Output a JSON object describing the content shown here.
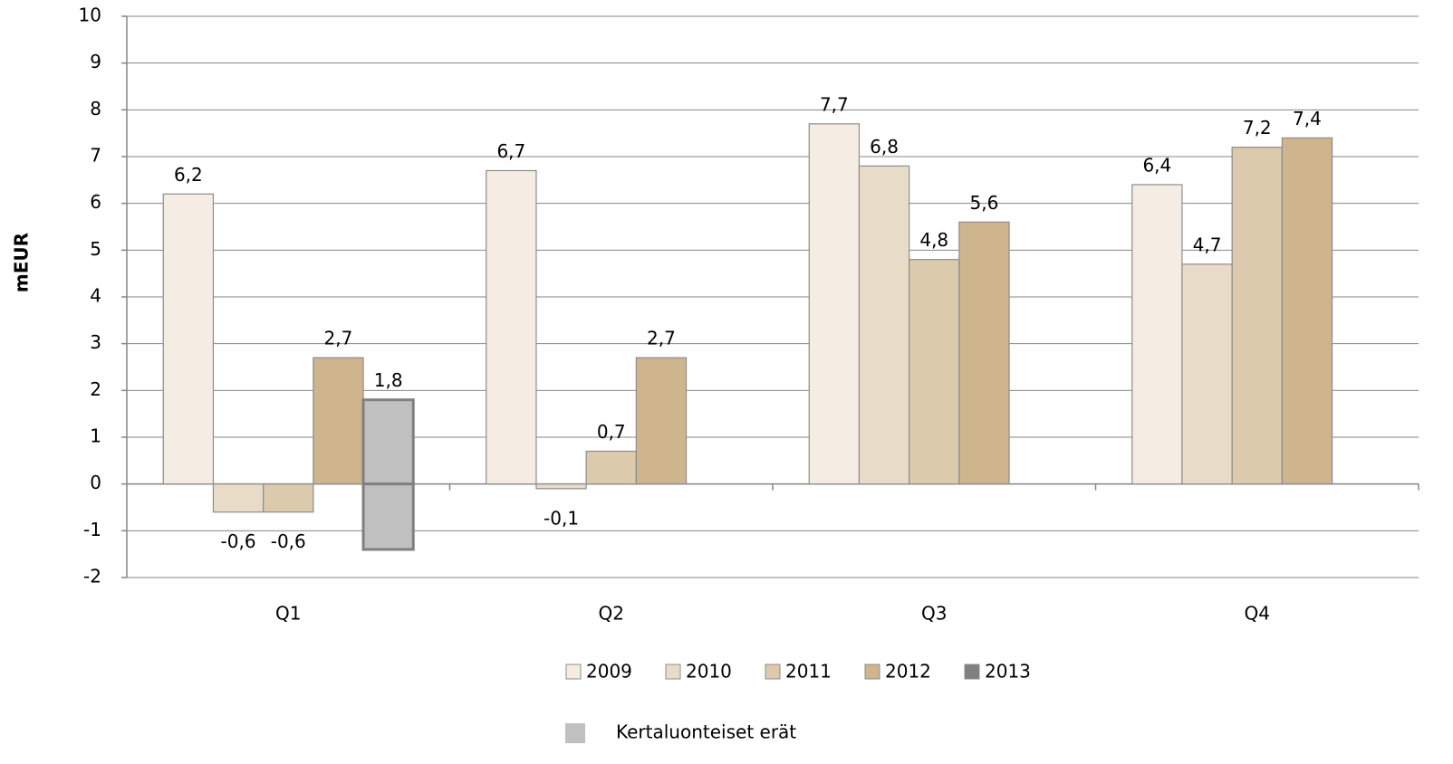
{
  "chart_data": {
    "type": "bar",
    "y_label": "mEUR",
    "categories": [
      "Q1",
      "Q2",
      "Q3",
      "Q4"
    ],
    "series": [
      {
        "name": "2009",
        "color": "#f5ede4",
        "values": [
          6.2,
          6.7,
          7.7,
          6.4
        ],
        "value_labels": [
          "6,2",
          "6,7",
          "7,7",
          "6,4"
        ]
      },
      {
        "name": "2010",
        "color": "#e8dcc9",
        "values": [
          -0.6,
          -0.1,
          6.8,
          4.7
        ],
        "value_labels": [
          "-0,6",
          "-0,1",
          "6,8",
          "4,7"
        ]
      },
      {
        "name": "2011",
        "color": "#dccaac",
        "values": [
          -0.6,
          0.7,
          4.8,
          7.2
        ],
        "value_labels": [
          "-0,6",
          "0,7",
          "4,8",
          "7,2"
        ]
      },
      {
        "name": "2012",
        "color": "#cfb58e",
        "values": [
          2.7,
          2.7,
          5.6,
          7.4
        ],
        "value_labels": [
          "2,7",
          "2,7",
          "5,6",
          "7,4"
        ]
      },
      {
        "name": "2013",
        "color": "#808080",
        "values": [
          1.8,
          null,
          null,
          null
        ],
        "value_labels": [
          "1,8",
          null,
          null,
          null
        ]
      },
      {
        "name": "Kertaluonteiset erät",
        "color": "#c0c0c0",
        "values": [
          -1.4,
          null,
          null,
          null
        ]
      }
    ],
    "ylim": [
      -2,
      10
    ],
    "yticks": [
      -2,
      -1,
      0,
      1,
      2,
      3,
      4,
      5,
      6,
      7,
      8,
      9,
      10
    ],
    "grid": true
  }
}
